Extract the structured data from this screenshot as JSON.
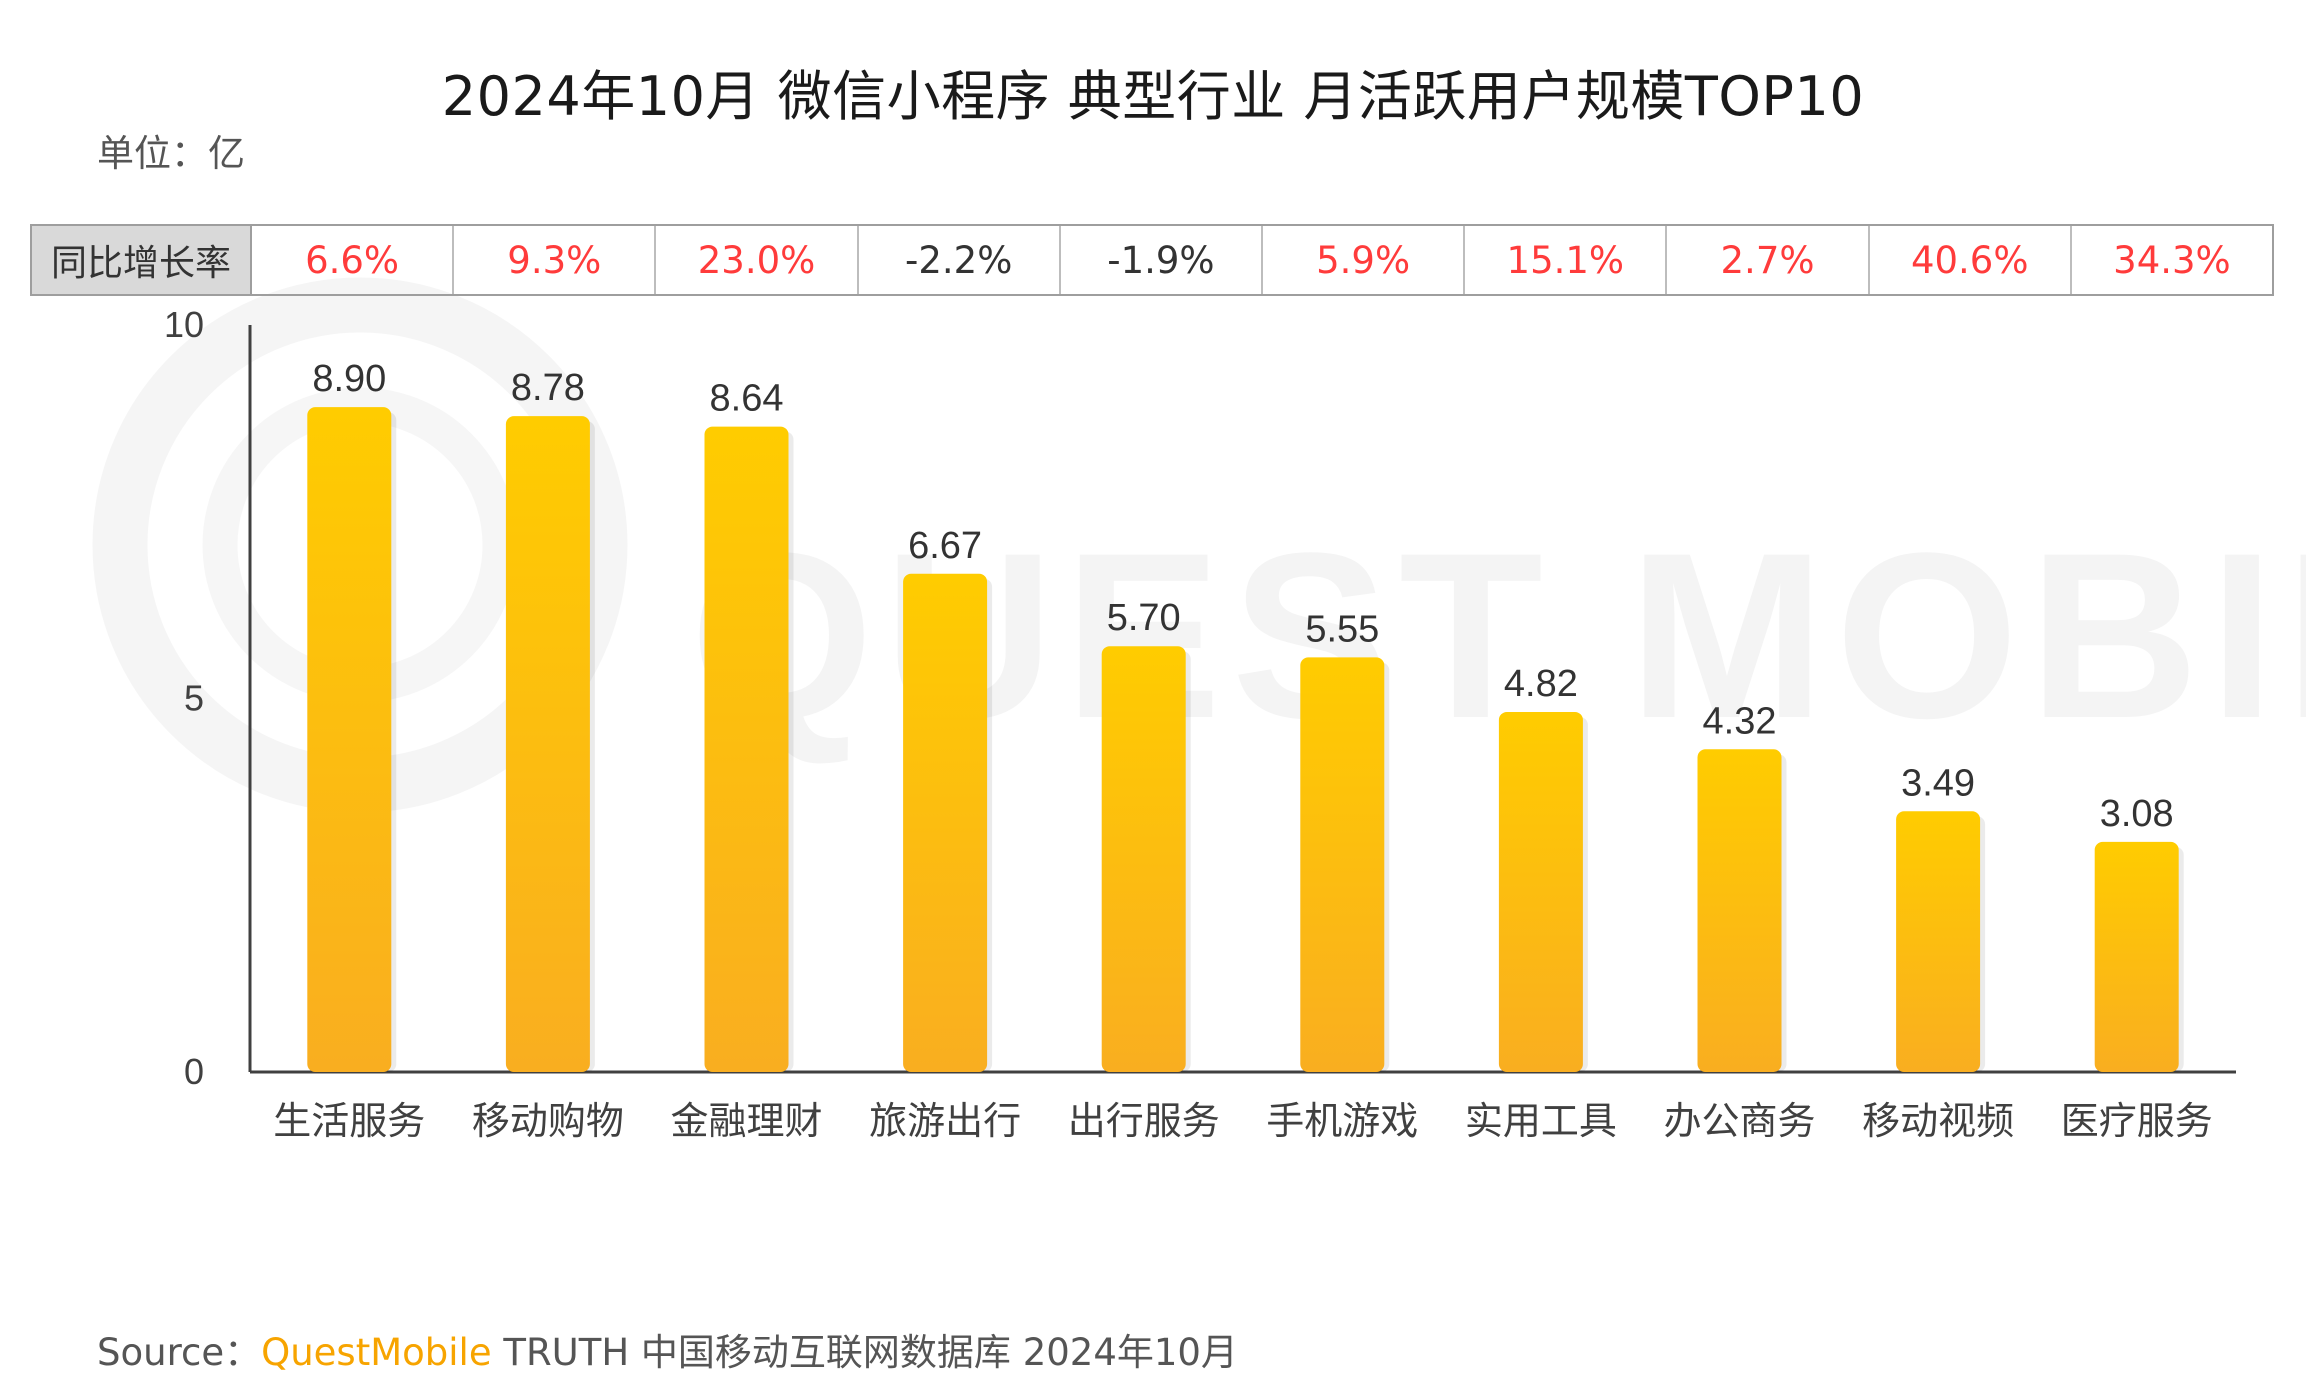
{
  "title": "2024年10月 微信小程序 典型行业 月活跃用户规模TOP10",
  "unit_label": "单位：亿",
  "watermark": "QUEST MOBILE",
  "yoy": {
    "header": "同比增长率",
    "values": [
      "6.6%",
      "9.3%",
      "23.0%",
      "-2.2%",
      "-1.9%",
      "5.9%",
      "15.1%",
      "2.7%",
      "40.6%",
      "34.3%"
    ]
  },
  "colors": {
    "positive": "#ff3b3b",
    "negative": "#333333",
    "bar_top": "#ffcc00",
    "bar_bottom": "#f9ae20"
  },
  "chart_data": {
    "type": "bar",
    "title": "2024年10月 微信小程序 典型行业 月活跃用户规模TOP10",
    "categories": [
      "生活服务",
      "移动购物",
      "金融理财",
      "旅游出行",
      "出行服务",
      "手机游戏",
      "实用工具",
      "办公商务",
      "移动视频",
      "医疗服务"
    ],
    "values": [
      8.9,
      8.78,
      8.64,
      6.67,
      5.7,
      5.55,
      4.82,
      4.32,
      3.49,
      3.08
    ],
    "value_labels": [
      "8.90",
      "8.78",
      "8.64",
      "6.67",
      "5.70",
      "5.55",
      "4.82",
      "4.32",
      "3.49",
      "3.08"
    ],
    "ylim": [
      0,
      10
    ],
    "yticks": [
      0,
      5,
      10
    ],
    "ytick_labels": [
      "0",
      "5",
      "10"
    ],
    "xlabel": "",
    "ylabel": "",
    "grid": false
  },
  "source": {
    "prefix": "Source：",
    "brand": "QuestMobile",
    "rest": " TRUTH 中国移动互联网数据库 2024年10月"
  }
}
